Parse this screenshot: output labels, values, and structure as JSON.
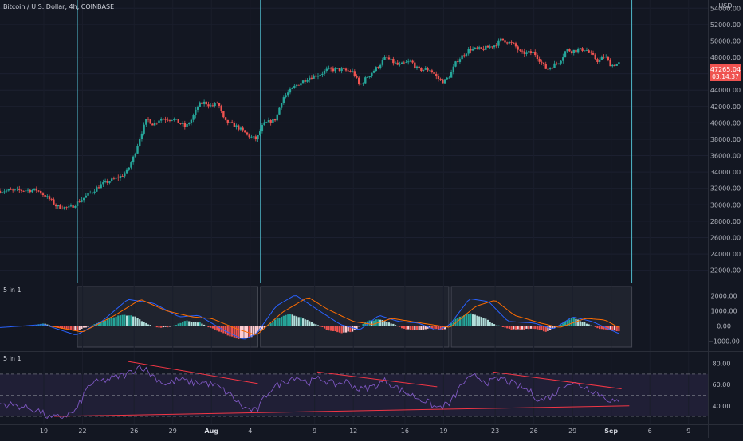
{
  "symbol_label": "Bitcoin / U.S. Dollar, 4h, COINBASE",
  "currency": "USD",
  "last_price": "47265.04",
  "countdown": "03:14:37",
  "macd_label": "5 in 1",
  "rsi_label": "5 in 1",
  "colors": {
    "background": "#131722",
    "up": "#26a69a",
    "down": "#ef5350",
    "vline": "#4fb6c8",
    "macd": "#2962ff",
    "signal": "#ff6d00",
    "rsi": "#7e57c2",
    "trend": "#f23645",
    "text": "#b2b5be"
  },
  "chart_data": [
    {
      "type": "candlestick",
      "name": "price",
      "y_ticks": [
        22000,
        24000,
        26000,
        28000,
        30000,
        32000,
        34000,
        36000,
        38000,
        40000,
        42000,
        44000,
        46000,
        48000,
        50000,
        52000,
        54000
      ],
      "ylim": [
        20800,
        55000
      ],
      "x_tick_labels": [
        "19",
        "22",
        "26",
        "29",
        "Aug",
        "4",
        "9",
        "12",
        "16",
        "19",
        "23",
        "26",
        "29",
        "Sep",
        "6",
        "9"
      ],
      "x_tick_days": [
        19,
        22,
        26,
        29,
        32,
        35,
        40,
        43,
        47,
        50,
        54,
        57,
        60,
        63,
        66,
        69
      ],
      "x_range_days": [
        15.6,
        70.5
      ],
      "vertical_lines_days": [
        21.6,
        35.8,
        50.5,
        64.6
      ],
      "anchors": [
        [
          15.6,
          31700
        ],
        [
          18.5,
          31800
        ],
        [
          19.5,
          30600
        ],
        [
          20.0,
          29800
        ],
        [
          21.0,
          29600
        ],
        [
          21.8,
          30500
        ],
        [
          23.5,
          32500
        ],
        [
          25.0,
          33500
        ],
        [
          25.5,
          34200
        ],
        [
          26.0,
          36000
        ],
        [
          26.5,
          38500
        ],
        [
          27.0,
          40500
        ],
        [
          27.5,
          39800
        ],
        [
          28.0,
          40500
        ],
        [
          29.0,
          40500
        ],
        [
          30.0,
          39500
        ],
        [
          30.5,
          40500
        ],
        [
          31.0,
          42200
        ],
        [
          31.5,
          42500
        ],
        [
          32.0,
          42000
        ],
        [
          32.5,
          42500
        ],
        [
          33.0,
          40200
        ],
        [
          34.0,
          39500
        ],
        [
          35.0,
          38300
        ],
        [
          35.5,
          38000
        ],
        [
          36.0,
          39800
        ],
        [
          37.0,
          40500
        ],
        [
          37.5,
          43000
        ],
        [
          38.5,
          44500
        ],
        [
          39.5,
          45500
        ],
        [
          40.5,
          46000
        ],
        [
          41.0,
          46500
        ],
        [
          42.0,
          46500
        ],
        [
          43.0,
          46200
        ],
        [
          43.5,
          44500
        ],
        [
          44.0,
          45500
        ],
        [
          45.0,
          47000
        ],
        [
          45.5,
          48000
        ],
        [
          46.5,
          47000
        ],
        [
          47.5,
          47500
        ],
        [
          48.0,
          46500
        ],
        [
          49.0,
          46500
        ],
        [
          49.5,
          45500
        ],
        [
          50.0,
          45000
        ],
        [
          50.5,
          45800
        ],
        [
          51.0,
          47500
        ],
        [
          52.0,
          49000
        ],
        [
          53.0,
          49000
        ],
        [
          54.0,
          49500
        ],
        [
          54.5,
          50200
        ],
        [
          55.5,
          49500
        ],
        [
          56.0,
          48500
        ],
        [
          57.0,
          48600
        ],
        [
          58.0,
          46500
        ],
        [
          59.0,
          47500
        ],
        [
          59.5,
          48900
        ],
        [
          60.0,
          48800
        ],
        [
          61.0,
          49000
        ],
        [
          62.0,
          47500
        ],
        [
          62.5,
          48200
        ],
        [
          63.0,
          47000
        ],
        [
          63.6,
          47265
        ]
      ]
    },
    {
      "type": "histogram",
      "name": "MACD",
      "y_ticks": [
        2000,
        1000,
        0,
        -1000
      ],
      "y_tick_labels": [
        "2000.00",
        "1000.00",
        "0.00",
        "−1000.00"
      ],
      "ylim": [
        -1600,
        2600
      ],
      "boxes_days": [
        [
          21.6,
          35.6
        ],
        [
          35.8,
          50.4
        ],
        [
          50.6,
          64.6
        ]
      ],
      "anchors": [
        [
          15.6,
          0
        ],
        [
          18.0,
          0
        ],
        [
          19.0,
          150
        ],
        [
          20.5,
          -200
        ],
        [
          21.6,
          -300
        ],
        [
          23.0,
          150
        ],
        [
          24.0,
          450
        ],
        [
          25.0,
          750
        ],
        [
          26.0,
          650
        ],
        [
          27.0,
          150
        ],
        [
          28.0,
          -150
        ],
        [
          29.0,
          0
        ],
        [
          30.0,
          350
        ],
        [
          31.0,
          250
        ],
        [
          32.0,
          -150
        ],
        [
          33.0,
          -500
        ],
        [
          34.0,
          -850
        ],
        [
          35.0,
          -750
        ],
        [
          36.0,
          -200
        ],
        [
          37.0,
          450
        ],
        [
          38.0,
          800
        ],
        [
          39.0,
          550
        ],
        [
          40.0,
          150
        ],
        [
          41.0,
          -250
        ],
        [
          42.0,
          -450
        ],
        [
          43.0,
          -350
        ],
        [
          44.0,
          300
        ],
        [
          45.0,
          450
        ],
        [
          46.0,
          150
        ],
        [
          47.0,
          -200
        ],
        [
          48.0,
          -300
        ],
        [
          49.0,
          -150
        ],
        [
          50.0,
          -300
        ],
        [
          51.0,
          500
        ],
        [
          52.0,
          850
        ],
        [
          53.0,
          600
        ],
        [
          54.0,
          100
        ],
        [
          55.0,
          -200
        ],
        [
          56.0,
          -250
        ],
        [
          57.0,
          -150
        ],
        [
          58.0,
          -400
        ],
        [
          59.0,
          50
        ],
        [
          60.0,
          550
        ],
        [
          61.0,
          200
        ],
        [
          62.0,
          -150
        ],
        [
          63.0,
          -300
        ],
        [
          63.6,
          -350
        ]
      ],
      "macd_anchors": [
        [
          15.6,
          -100
        ],
        [
          19.0,
          100
        ],
        [
          21.5,
          -600
        ],
        [
          23.5,
          300
        ],
        [
          25.5,
          1750
        ],
        [
          27.5,
          1500
        ],
        [
          29.5,
          600
        ],
        [
          31.0,
          700
        ],
        [
          33.0,
          -300
        ],
        [
          34.5,
          -900
        ],
        [
          35.5,
          -500
        ],
        [
          37.0,
          1300
        ],
        [
          38.5,
          2050
        ],
        [
          40.0,
          1200
        ],
        [
          42.0,
          100
        ],
        [
          43.5,
          -250
        ],
        [
          45.0,
          700
        ],
        [
          46.5,
          300
        ],
        [
          48.0,
          200
        ],
        [
          49.5,
          -300
        ],
        [
          50.5,
          100
        ],
        [
          52.0,
          1800
        ],
        [
          53.5,
          1600
        ],
        [
          55.0,
          300
        ],
        [
          57.0,
          200
        ],
        [
          58.5,
          -200
        ],
        [
          60.0,
          600
        ],
        [
          61.5,
          300
        ],
        [
          63.6,
          -500
        ]
      ],
      "signal_anchors": [
        [
          15.6,
          0
        ],
        [
          19.5,
          0
        ],
        [
          22.0,
          -400
        ],
        [
          24.5,
          700
        ],
        [
          26.5,
          1750
        ],
        [
          28.5,
          1000
        ],
        [
          30.5,
          600
        ],
        [
          32.0,
          500
        ],
        [
          34.0,
          -200
        ],
        [
          35.5,
          -600
        ],
        [
          37.5,
          900
        ],
        [
          39.5,
          1900
        ],
        [
          41.0,
          1100
        ],
        [
          43.0,
          300
        ],
        [
          44.5,
          100
        ],
        [
          46.0,
          500
        ],
        [
          47.5,
          300
        ],
        [
          49.0,
          100
        ],
        [
          50.5,
          -100
        ],
        [
          52.5,
          1300
        ],
        [
          54.0,
          1700
        ],
        [
          55.5,
          700
        ],
        [
          57.5,
          200
        ],
        [
          59.0,
          -100
        ],
        [
          61.0,
          500
        ],
        [
          62.5,
          400
        ],
        [
          63.6,
          -100
        ]
      ]
    },
    {
      "type": "line",
      "name": "RSI",
      "y_ticks": [
        80,
        60,
        40
      ],
      "y_tick_labels": [
        "80.00",
        "60.00",
        "40.00"
      ],
      "ylim": [
        24,
        88
      ],
      "band": [
        30,
        70
      ],
      "midline": 50,
      "anchors": [
        [
          15.6,
          42
        ],
        [
          17.0,
          40
        ],
        [
          18.5,
          36
        ],
        [
          19.5,
          28
        ],
        [
          20.5,
          30
        ],
        [
          21.5,
          35
        ],
        [
          22.5,
          60
        ],
        [
          24.0,
          65
        ],
        [
          25.5,
          70
        ],
        [
          26.5,
          78
        ],
        [
          27.5,
          68
        ],
        [
          28.5,
          60
        ],
        [
          29.5,
          65
        ],
        [
          30.5,
          62
        ],
        [
          31.5,
          62
        ],
        [
          32.5,
          58
        ],
        [
          33.5,
          50
        ],
        [
          34.5,
          38
        ],
        [
          35.5,
          35
        ],
        [
          36.5,
          55
        ],
        [
          37.5,
          62
        ],
        [
          38.5,
          68
        ],
        [
          39.5,
          62
        ],
        [
          40.5,
          66
        ],
        [
          41.5,
          60
        ],
        [
          42.5,
          63
        ],
        [
          43.5,
          55
        ],
        [
          44.5,
          58
        ],
        [
          45.5,
          64
        ],
        [
          46.5,
          56
        ],
        [
          47.5,
          50
        ],
        [
          48.5,
          45
        ],
        [
          49.5,
          38
        ],
        [
          50.5,
          42
        ],
        [
          51.5,
          62
        ],
        [
          52.5,
          68
        ],
        [
          53.5,
          62
        ],
        [
          54.5,
          66
        ],
        [
          55.5,
          60
        ],
        [
          56.5,
          55
        ],
        [
          57.5,
          45
        ],
        [
          58.5,
          50
        ],
        [
          59.5,
          62
        ],
        [
          60.5,
          60
        ],
        [
          61.5,
          55
        ],
        [
          62.5,
          48
        ],
        [
          63.6,
          42
        ]
      ],
      "trendlines": [
        [
          [
            25.5,
            82
          ],
          [
            35.6,
            61
          ]
        ],
        [
          [
            40.2,
            72
          ],
          [
            49.5,
            58
          ]
        ],
        [
          [
            53.8,
            72
          ],
          [
            63.8,
            56
          ]
        ],
        [
          [
            19.8,
            30
          ],
          [
            64.4,
            40
          ]
        ]
      ]
    }
  ]
}
